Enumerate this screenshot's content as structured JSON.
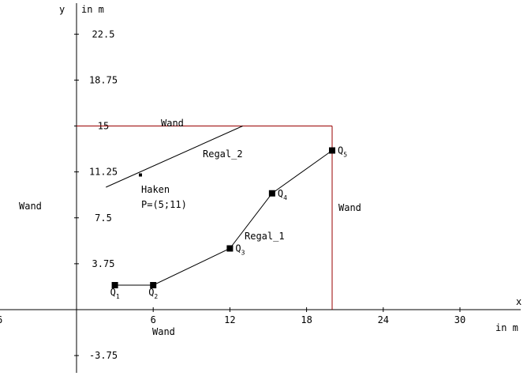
{
  "axes": {
    "x_label": "x",
    "x_unit": "in m",
    "y_label": "y",
    "y_unit": "in m",
    "x_ticks": [
      "6",
      "12",
      "18",
      "24",
      "30"
    ],
    "x_tick_values": [
      6,
      12,
      18,
      24,
      30
    ],
    "x_left_label": "6",
    "y_ticks": [
      "22.5",
      "18.75",
      "15",
      "11.25",
      "7.5",
      "3.75",
      "-3.75"
    ],
    "y_tick_values": [
      22.5,
      18.75,
      15,
      11.25,
      7.5,
      3.75,
      -3.75
    ]
  },
  "colors": {
    "wall": "#990000",
    "line": "#000000"
  },
  "walls": {
    "label_top": "Wand",
    "label_left": "Wand",
    "label_right": "Wand",
    "label_bottom": "Wand",
    "top": {
      "x1": 0,
      "x2": 20,
      "y": 15
    },
    "right": {
      "x": 20,
      "y1": 0,
      "y2": 15
    }
  },
  "regal_1": {
    "label": "Regal_1",
    "points": [
      {
        "name": "Q",
        "sub": "1",
        "x": 3,
        "y": 2
      },
      {
        "name": "Q",
        "sub": "2",
        "x": 6,
        "y": 2
      },
      {
        "name": "Q",
        "sub": "3",
        "x": 12,
        "y": 5
      },
      {
        "name": "Q",
        "sub": "4",
        "x": 15.3,
        "y": 9.5
      },
      {
        "name": "Q",
        "sub": "5",
        "x": 20,
        "y": 13
      }
    ]
  },
  "regal_2": {
    "label": "Regal_2",
    "start": {
      "x": 2.3,
      "y": 10
    },
    "end": {
      "x": 13,
      "y": 15
    }
  },
  "haken": {
    "label": "Haken",
    "coord_label": "P=(5;11)",
    "x": 5,
    "y": 11
  }
}
